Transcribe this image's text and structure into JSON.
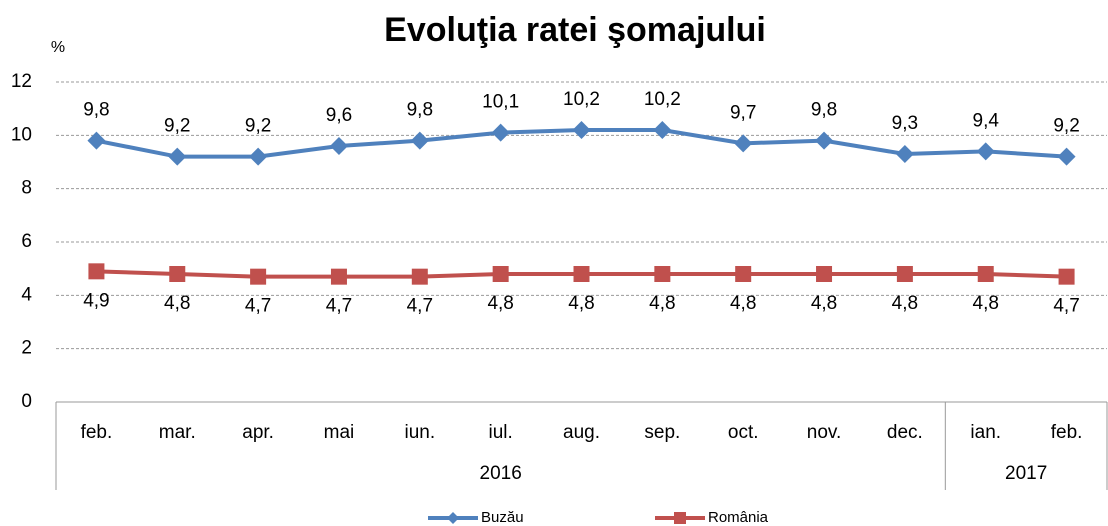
{
  "chart_data": {
    "type": "line",
    "title": "Evoluţia ratei şomajului",
    "y_unit": "%",
    "categories": [
      "feb.",
      "mar.",
      "apr.",
      "mai",
      "iun.",
      "iul.",
      "aug.",
      "sep.",
      "oct.",
      "nov.",
      "dec.",
      "ian.",
      "feb."
    ],
    "category_groups": [
      {
        "label": "2016",
        "span": 11
      },
      {
        "label": "2017",
        "span": 2
      }
    ],
    "series": [
      {
        "name": "Buzău",
        "color": "#4f81bd",
        "marker": "diamond",
        "label_position": "above",
        "values": [
          9.8,
          9.2,
          9.2,
          9.6,
          9.8,
          10.1,
          10.2,
          10.2,
          9.7,
          9.8,
          9.3,
          9.4,
          9.2
        ],
        "value_labels": [
          "9,8",
          "9,2",
          "9,2",
          "9,6",
          "9,8",
          "10,1",
          "10,2",
          "10,2",
          "9,7",
          "9,8",
          "9,3",
          "9,4",
          "9,2"
        ]
      },
      {
        "name": "România",
        "color": "#c0504d",
        "marker": "square",
        "label_position": "below",
        "values": [
          4.9,
          4.8,
          4.7,
          4.7,
          4.7,
          4.8,
          4.8,
          4.8,
          4.8,
          4.8,
          4.8,
          4.8,
          4.7
        ],
        "value_labels": [
          "4,9",
          "4,8",
          "4,7",
          "4,7",
          "4,7",
          "4,8",
          "4,8",
          "4,8",
          "4,8",
          "4,8",
          "4,8",
          "4,8",
          "4,7"
        ]
      }
    ],
    "ylim": [
      0,
      12
    ],
    "yticks": [
      0,
      2,
      4,
      6,
      8,
      10,
      12
    ],
    "grid": true,
    "legend": "bottom"
  }
}
